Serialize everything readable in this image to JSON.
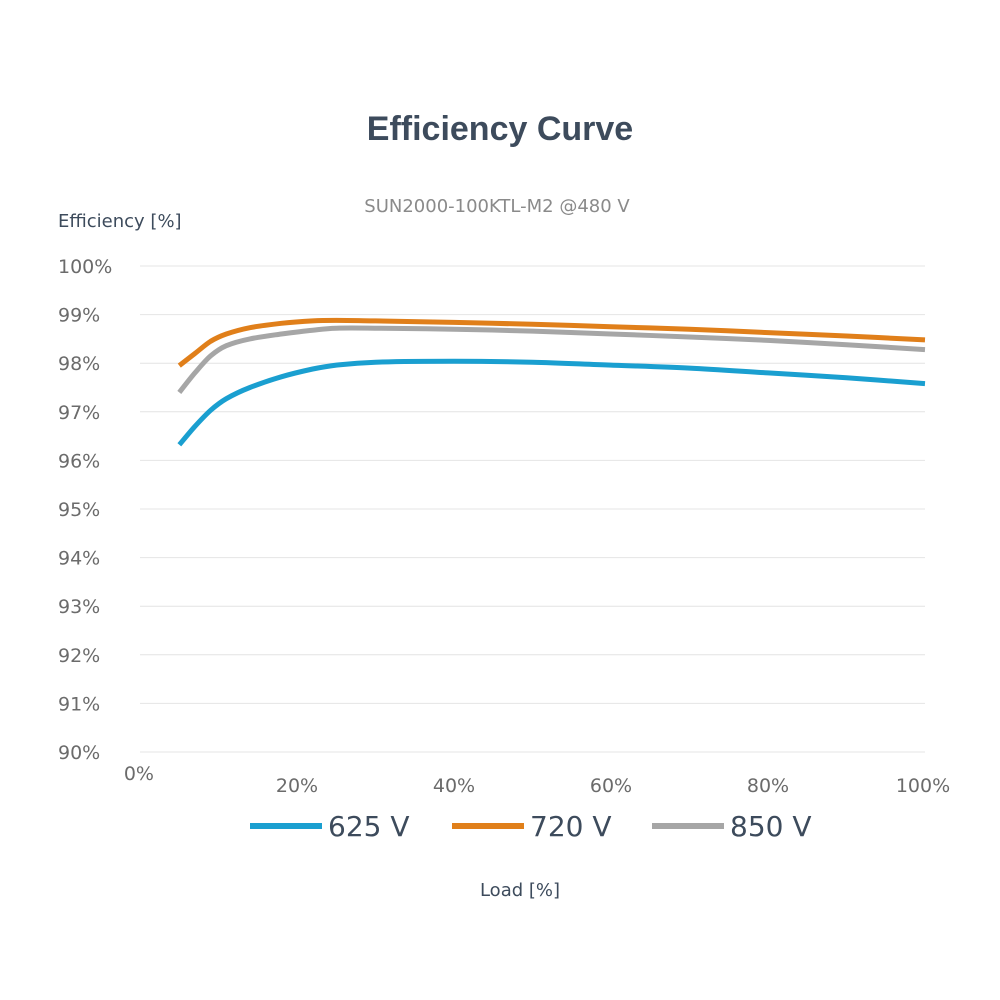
{
  "chart_data": {
    "type": "line",
    "title": "Efficiency Curve",
    "subtitle": "SUN2000-100KTL-M2 @480 V",
    "ylabel": "Efficiency [%]",
    "xlabel": "Load [%]",
    "xlim": [
      0,
      100
    ],
    "ylim": [
      90,
      100
    ],
    "x_ticks": [
      0,
      20,
      40,
      60,
      80,
      100
    ],
    "x_tick_labels": [
      "0%",
      "20%",
      "40%",
      "60%",
      "80%",
      "100%"
    ],
    "y_ticks": [
      100,
      99,
      98,
      97,
      96,
      95,
      94,
      93,
      92,
      91,
      90
    ],
    "y_tick_labels": [
      "100%",
      "99%",
      "98%",
      "97%",
      "96%",
      "95%",
      "94%",
      "93%",
      "92%",
      "91%",
      "90%"
    ],
    "grid": true,
    "legend_position": "bottom",
    "x": [
      5,
      7,
      9,
      11,
      14,
      18,
      22,
      25,
      30,
      40,
      50,
      60,
      70,
      80,
      90,
      100
    ],
    "series": [
      {
        "name": "625 V",
        "color": "#1a9fd0",
        "values": [
          96.32,
          96.7,
          97.03,
          97.27,
          97.5,
          97.72,
          97.88,
          97.96,
          98.02,
          98.04,
          98.02,
          97.96,
          97.9,
          97.8,
          97.7,
          97.58
        ]
      },
      {
        "name": "720 V",
        "color": "#e07f1a",
        "values": [
          97.95,
          98.2,
          98.45,
          98.6,
          98.73,
          98.82,
          98.87,
          98.88,
          98.87,
          98.84,
          98.8,
          98.75,
          98.7,
          98.63,
          98.56,
          98.48
        ]
      },
      {
        "name": "850 V",
        "color": "#a6a6a6",
        "values": [
          97.4,
          97.8,
          98.15,
          98.36,
          98.5,
          98.6,
          98.68,
          98.72,
          98.72,
          98.7,
          98.66,
          98.6,
          98.54,
          98.47,
          98.38,
          98.28
        ]
      }
    ]
  }
}
